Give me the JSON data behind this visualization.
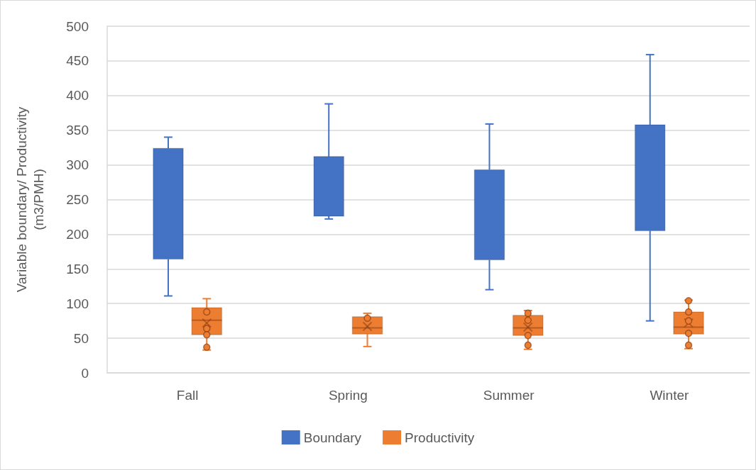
{
  "chart_data": {
    "type": "box",
    "ylabel": "Variable boundary/ Productivity\n(m3/PMH)",
    "categories": [
      "Fall",
      "Spring",
      "Summer",
      "Winter"
    ],
    "ylim": [
      0,
      500
    ],
    "yticks": [
      0,
      50,
      100,
      150,
      200,
      250,
      300,
      350,
      400,
      450,
      500
    ],
    "grid": "y",
    "legend": "bottom",
    "marker": "circle",
    "series": [
      {
        "name": "Boundary",
        "color": "#4472c4",
        "boxes": [
          {
            "low": 111,
            "q1": 164,
            "median": null,
            "q3": 324,
            "high": 340
          },
          {
            "low": 222,
            "q1": 226,
            "median": null,
            "q3": 312,
            "high": 388
          },
          {
            "low": 120,
            "q1": 163,
            "median": null,
            "q3": 293,
            "high": 359
          },
          {
            "low": 75,
            "q1": 205,
            "median": null,
            "q3": 358,
            "high": 459
          }
        ]
      },
      {
        "name": "Productivity",
        "color": "#ed7d31",
        "boxes": [
          {
            "low": 33,
            "q1": 55,
            "median": 76,
            "q3": 94,
            "high": 107,
            "mean": 72,
            "outliers": [
              88,
              64,
              55,
              37
            ]
          },
          {
            "low": 38,
            "q1": 56,
            "median": 65,
            "q3": 81,
            "high": 86,
            "mean": 67,
            "outliers": [
              79
            ]
          },
          {
            "low": 34,
            "q1": 54,
            "median": 65,
            "q3": 83,
            "high": 90,
            "mean": 66,
            "outliers": [
              86,
              76,
              54,
              40
            ]
          },
          {
            "low": 35,
            "q1": 56,
            "median": 66,
            "q3": 88,
            "high": 105,
            "mean": 72,
            "outliers": [
              104,
              88,
              75,
              57,
              40
            ]
          }
        ]
      }
    ]
  }
}
